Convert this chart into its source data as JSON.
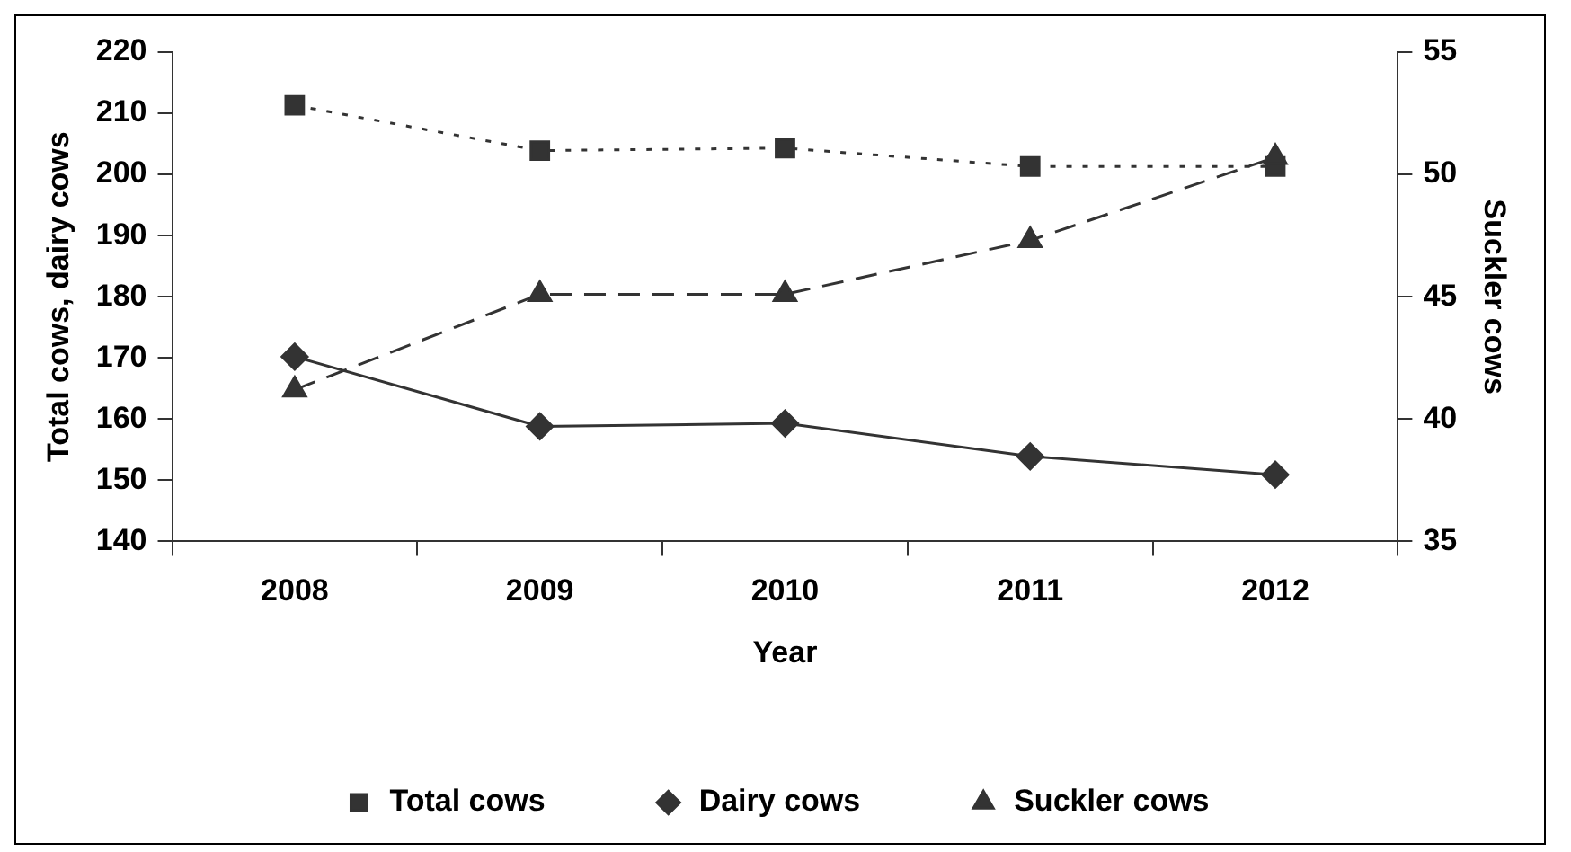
{
  "chart_data": {
    "type": "line",
    "xlabel": "Year",
    "ylabel": "Total cows, dairy cows",
    "y2label": "Suckler cows",
    "categories": [
      "2008",
      "2009",
      "2010",
      "2011",
      "2012"
    ],
    "series": [
      {
        "name": "Total cows",
        "color": "#333333",
        "marker": "square",
        "line_style": "dotted",
        "values": [
          211.3,
          203.9,
          204.3,
          201.3,
          201.3
        ]
      },
      {
        "name": "Dairy cows",
        "color": "#333333",
        "marker": "diamond",
        "line_style": "solid",
        "values": [
          170.2,
          158.8,
          159.3,
          153.9,
          150.9
        ]
      },
      {
        "name": "Suckler cows",
        "color": "#333333",
        "marker": "triangle",
        "line_style": "dashed",
        "axis": "y2",
        "values": [
          41.2,
          45.1,
          45.1,
          47.3,
          50.7
        ]
      }
    ],
    "ylim": [
      140,
      220
    ],
    "yticks": [
      140,
      150,
      160,
      170,
      180,
      190,
      200,
      210,
      220
    ],
    "y2lim": [
      35,
      55
    ],
    "y2ticks": [
      35,
      40,
      45,
      50,
      55
    ],
    "grid": false,
    "legend": "bottom"
  }
}
